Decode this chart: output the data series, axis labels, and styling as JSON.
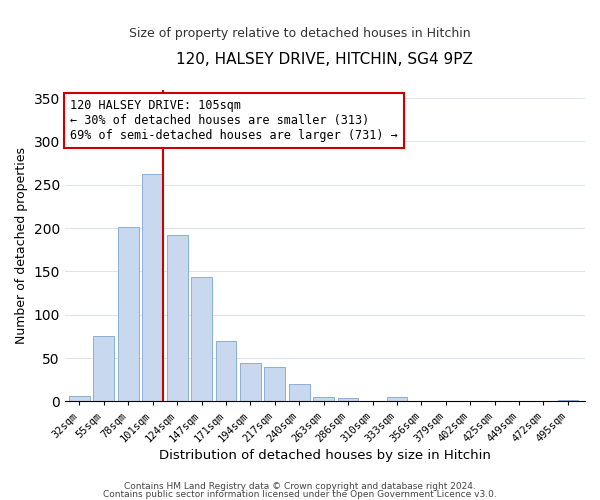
{
  "title": "120, HALSEY DRIVE, HITCHIN, SG4 9PZ",
  "subtitle": "Size of property relative to detached houses in Hitchin",
  "xlabel": "Distribution of detached houses by size in Hitchin",
  "ylabel": "Number of detached properties",
  "bar_labels": [
    "32sqm",
    "55sqm",
    "78sqm",
    "101sqm",
    "124sqm",
    "147sqm",
    "171sqm",
    "194sqm",
    "217sqm",
    "240sqm",
    "263sqm",
    "286sqm",
    "310sqm",
    "333sqm",
    "356sqm",
    "379sqm",
    "402sqm",
    "425sqm",
    "449sqm",
    "472sqm",
    "495sqm"
  ],
  "bar_values": [
    6,
    75,
    201,
    262,
    192,
    143,
    70,
    44,
    40,
    20,
    5,
    4,
    0,
    5,
    0,
    0,
    0,
    0,
    0,
    0,
    2
  ],
  "bar_color": "#c8d9ef",
  "bar_edge_color": "#8dafd4",
  "vline_color": "#cc0000",
  "ylim": [
    0,
    360
  ],
  "yticks": [
    0,
    50,
    100,
    150,
    200,
    250,
    300,
    350
  ],
  "annotation_title": "120 HALSEY DRIVE: 105sqm",
  "annotation_line1": "← 30% of detached houses are smaller (313)",
  "annotation_line2": "69% of semi-detached houses are larger (731) →",
  "annotation_box_color": "#ffffff",
  "annotation_box_edge": "#cc0000",
  "footer1": "Contains HM Land Registry data © Crown copyright and database right 2024.",
  "footer2": "Contains public sector information licensed under the Open Government Licence v3.0."
}
